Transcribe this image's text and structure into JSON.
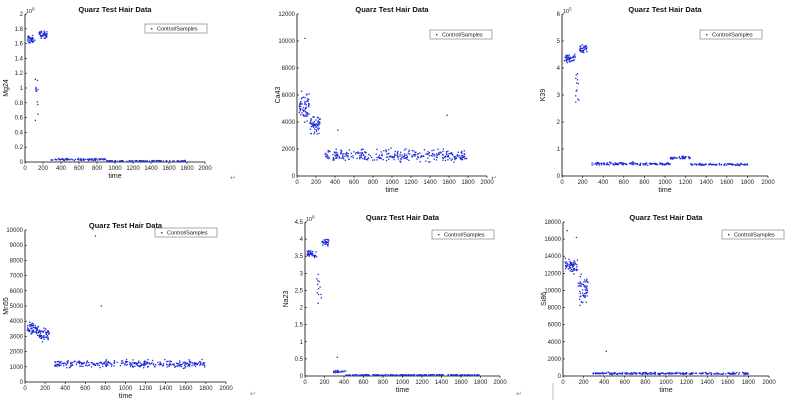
{
  "chart_data": [
    {
      "type": "scatter",
      "title": "Quarz Test Hair Data",
      "xlabel": "time",
      "ylabel": "Mg24",
      "xlim": [
        0,
        2000
      ],
      "ylim": [
        0,
        2
      ],
      "y_exponent": "10",
      "y_exponent_power": "6",
      "legend": "Control/Samples",
      "legend_position": "top-right",
      "xticks": [
        "0",
        "200",
        "400",
        "600",
        "800",
        "1000",
        "1200",
        "1400",
        "1600",
        "1800",
        "2000"
      ],
      "yticks": [
        "0",
        "0.2",
        "0.4",
        "0.6",
        "0.8",
        "1",
        "1.2",
        "1.4",
        "1.6",
        "1.8",
        "2"
      ],
      "series": [
        {
          "x_start": 20,
          "x_end": 110,
          "y_mean": 1.65,
          "y_spread": 0.08,
          "n": 40
        },
        {
          "x_start": 110,
          "x_end": 155,
          "y_mean": 0.9,
          "y_spread": 0.45,
          "n": 12
        },
        {
          "x_start": 155,
          "x_end": 245,
          "y_mean": 1.72,
          "y_spread": 0.07,
          "n": 40
        },
        {
          "x_start": 290,
          "x_end": 900,
          "y_mean": 0.035,
          "y_spread": 0.02,
          "n": 90
        },
        {
          "x_start": 900,
          "x_end": 1800,
          "y_mean": 0.015,
          "y_spread": 0.01,
          "n": 90
        }
      ]
    },
    {
      "type": "scatter",
      "title": "Quarz Test Hair Data",
      "xlabel": "time",
      "ylabel": "Ca43",
      "xlim": [
        0,
        2000
      ],
      "ylim": [
        0,
        12000
      ],
      "legend": "Control/Samples",
      "legend_position": "top-right",
      "xticks": [
        "0",
        "200",
        "400",
        "600",
        "800",
        "1000",
        "1200",
        "1400",
        "1600",
        "1800",
        "2000"
      ],
      "yticks": [
        "0",
        "2000",
        "4000",
        "6000",
        "8000",
        "10000",
        "12000"
      ],
      "series": [
        {
          "x_start": 20,
          "x_end": 130,
          "y_mean": 5200,
          "y_spread": 1400,
          "n": 70
        },
        {
          "x_start": 130,
          "x_end": 245,
          "y_mean": 3800,
          "y_spread": 900,
          "n": 60
        },
        {
          "x_start": 290,
          "x_end": 1800,
          "y_mean": 1500,
          "y_spread": 650,
          "n": 320
        }
      ],
      "outliers": [
        {
          "x": 85,
          "y": 10200
        },
        {
          "x": 1580,
          "y": 4500
        },
        {
          "x": 430,
          "y": 3400
        }
      ]
    },
    {
      "type": "scatter",
      "title": "Quarz Test Hair Data",
      "xlabel": "time",
      "ylabel": "K39",
      "xlim": [
        0,
        2000
      ],
      "ylim": [
        0,
        6
      ],
      "y_exponent": "10",
      "y_exponent_power": "5",
      "legend": "Control/Samples",
      "legend_position": "top-right",
      "xticks": [
        "0",
        "200",
        "400",
        "600",
        "800",
        "1000",
        "1200",
        "1400",
        "1600",
        "1800",
        "2000"
      ],
      "yticks": [
        "0",
        "1",
        "2",
        "3",
        "4",
        "5",
        "6"
      ],
      "series": [
        {
          "x_start": 20,
          "x_end": 130,
          "y_mean": 4.35,
          "y_spread": 0.25,
          "n": 45
        },
        {
          "x_start": 130,
          "x_end": 170,
          "y_mean": 3.3,
          "y_spread": 0.9,
          "n": 12
        },
        {
          "x_start": 170,
          "x_end": 245,
          "y_mean": 4.7,
          "y_spread": 0.25,
          "n": 35
        },
        {
          "x_start": 290,
          "x_end": 1050,
          "y_mean": 0.45,
          "y_spread": 0.08,
          "n": 140
        },
        {
          "x_start": 1050,
          "x_end": 1250,
          "y_mean": 0.68,
          "y_spread": 0.07,
          "n": 45
        },
        {
          "x_start": 1250,
          "x_end": 1800,
          "y_mean": 0.43,
          "y_spread": 0.06,
          "n": 90
        }
      ]
    },
    {
      "type": "scatter",
      "title": "Quarz Test Hair Data",
      "xlabel": "time",
      "ylabel": "Mn55",
      "xlim": [
        0,
        2000
      ],
      "ylim": [
        0,
        10000
      ],
      "legend": "Control/Samples",
      "legend_position": "top-right",
      "xticks": [
        "0",
        "200",
        "400",
        "600",
        "800",
        "1000",
        "1200",
        "1400",
        "1600",
        "1800",
        "2000"
      ],
      "yticks": [
        "0",
        "1000",
        "2000",
        "3000",
        "4000",
        "5000",
        "6000",
        "7000",
        "8000",
        "9000",
        "10000"
      ],
      "series": [
        {
          "x_start": 20,
          "x_end": 140,
          "y_mean": 3500,
          "y_spread": 600,
          "n": 60
        },
        {
          "x_start": 140,
          "x_end": 245,
          "y_mean": 3100,
          "y_spread": 700,
          "n": 50
        },
        {
          "x_start": 290,
          "x_end": 1800,
          "y_mean": 1200,
          "y_spread": 350,
          "n": 320
        }
      ],
      "outliers": [
        {
          "x": 700,
          "y": 9600
        },
        {
          "x": 760,
          "y": 5000
        }
      ]
    },
    {
      "type": "scatter",
      "title": "Quarz Test Hair Data",
      "xlabel": "time",
      "ylabel": "Na23",
      "xlim": [
        0,
        2000
      ],
      "ylim": [
        0,
        4.5
      ],
      "y_exponent": "10",
      "y_exponent_power": "6",
      "legend": "Control/Samples",
      "legend_position": "top-right",
      "xticks": [
        "0",
        "200",
        "400",
        "600",
        "800",
        "1000",
        "1200",
        "1400",
        "1600",
        "1800",
        "2000"
      ],
      "yticks": [
        "0",
        "0.5",
        "1",
        "1.5",
        "2",
        "2.5",
        "3",
        "3.5",
        "4",
        "4.5"
      ],
      "series": [
        {
          "x_start": 20,
          "x_end": 120,
          "y_mean": 3.55,
          "y_spread": 0.15,
          "n": 45
        },
        {
          "x_start": 120,
          "x_end": 170,
          "y_mean": 2.7,
          "y_spread": 0.8,
          "n": 12
        },
        {
          "x_start": 170,
          "x_end": 245,
          "y_mean": 3.9,
          "y_spread": 0.18,
          "n": 35
        },
        {
          "x_start": 290,
          "x_end": 420,
          "y_mean": 0.13,
          "y_spread": 0.05,
          "n": 25
        },
        {
          "x_start": 420,
          "x_end": 1800,
          "y_mean": 0.03,
          "y_spread": 0.02,
          "n": 200
        }
      ],
      "outliers": [
        {
          "x": 330,
          "y": 0.55
        }
      ]
    },
    {
      "type": "scatter",
      "title": "Quarz Test Hair Data",
      "xlabel": "time",
      "ylabel": "Si86",
      "xlim": [
        0,
        2000
      ],
      "ylim": [
        0,
        18000
      ],
      "legend": "Control/Samples",
      "legend_position": "top-right",
      "xticks": [
        "0",
        "200",
        "400",
        "600",
        "800",
        "1000",
        "1200",
        "1400",
        "1600",
        "1800",
        "2000"
      ],
      "yticks": [
        "0",
        "2000",
        "4000",
        "6000",
        "8000",
        "10000",
        "12000",
        "14000",
        "16000",
        "18000"
      ],
      "series": [
        {
          "x_start": 20,
          "x_end": 140,
          "y_mean": 12800,
          "y_spread": 1200,
          "n": 60
        },
        {
          "x_start": 140,
          "x_end": 245,
          "y_mean": 10000,
          "y_spread": 2200,
          "n": 55
        },
        {
          "x_start": 290,
          "x_end": 1800,
          "y_mean": 300,
          "y_spread": 180,
          "n": 250
        }
      ],
      "outliers": [
        {
          "x": 420,
          "y": 2900
        },
        {
          "x": 130,
          "y": 16200
        },
        {
          "x": 40,
          "y": 17000
        }
      ]
    }
  ],
  "decor": {
    "mark": "↵"
  }
}
